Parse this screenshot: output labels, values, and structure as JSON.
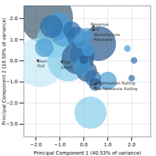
{
  "chart_data": {
    "type": "bubble",
    "xlabel": "Principal Component 1 (40.53% of variance)",
    "ylabel": "Principal Component 2 (10.50% of variance)",
    "xlim": [
      -2.5,
      2.8
    ],
    "ylim": [
      -3.6,
      2.6
    ],
    "xticks": [
      -2,
      -1,
      0,
      1,
      2
    ],
    "yticks": [
      -3,
      -2,
      -1,
      0,
      1,
      2
    ],
    "grid": true,
    "points": [
      {
        "x": -1.55,
        "y": 2.05,
        "size": 3200,
        "color": "#3d5a6e"
      },
      {
        "x": -1.05,
        "y": 1.65,
        "size": 900,
        "color": "#4a9dd4"
      },
      {
        "x": -0.85,
        "y": 1.25,
        "size": 700,
        "color": "#4a9dd4"
      },
      {
        "x": -1.25,
        "y": 0.95,
        "size": 1400,
        "color": "#87ceeb"
      },
      {
        "x": -0.5,
        "y": 1.45,
        "size": 350,
        "color": "#2d6fa8"
      },
      {
        "x": -0.3,
        "y": 1.15,
        "size": 450,
        "color": "#2d6fa8"
      },
      {
        "x": -0.1,
        "y": 0.95,
        "size": 300,
        "color": "#4a9dd4"
      },
      {
        "x": 0.1,
        "y": 1.25,
        "size": 200,
        "color": "#4a9dd4"
      },
      {
        "x": -0.65,
        "y": 0.02,
        "size": 2000,
        "color": "#87ceeb"
      },
      {
        "x": -0.25,
        "y": 0.12,
        "size": 1200,
        "color": "#2a5a8c"
      },
      {
        "x": -0.05,
        "y": 0.32,
        "size": 700,
        "color": "#2d6fa8"
      },
      {
        "x": 0.18,
        "y": 0.52,
        "size": 200,
        "color": "#4a9dd4"
      },
      {
        "x": 0.62,
        "y": 0.82,
        "size": 1400,
        "color": "#2a5a8c"
      },
      {
        "x": -0.05,
        "y": -0.28,
        "size": 350,
        "color": "#4a9dd4"
      },
      {
        "x": 0.12,
        "y": -0.5,
        "size": 500,
        "color": "#2a5a8c"
      },
      {
        "x": 0.38,
        "y": -0.82,
        "size": 300,
        "color": "#2d6fa8"
      },
      {
        "x": 0.48,
        "y": -1.12,
        "size": 180,
        "color": "#2a5a8c"
      },
      {
        "x": 1.0,
        "y": -0.95,
        "size": 380,
        "color": "#4a9dd4"
      },
      {
        "x": 0.28,
        "y": -2.45,
        "size": 1200,
        "color": "#87ceeb"
      },
      {
        "x": 2.1,
        "y": 0.02,
        "size": 50,
        "color": "#2d6fa8"
      },
      {
        "x": 2.0,
        "y": -0.82,
        "size": 50,
        "color": "#2d6fa8"
      },
      {
        "x": 1.82,
        "y": 0.58,
        "size": 50,
        "color": "#4a9dd4"
      },
      {
        "x": -1.85,
        "y": -0.08,
        "size": 2800,
        "color": "#c5e8f7"
      },
      {
        "x": -1.65,
        "y": 0.62,
        "size": 400,
        "color": "#4a9dd4"
      },
      {
        "x": -1.35,
        "y": 1.62,
        "size": 600,
        "color": "#2d6fa8"
      },
      {
        "x": 0.0,
        "y": 0.05,
        "size": 80,
        "color": "#2a5a8c"
      }
    ],
    "annotations": [
      {
        "x": 0.28,
        "y": 1.82,
        "text": "Revenue\nLoss"
      },
      {
        "x": 0.42,
        "y": 1.6,
        "text": "Manufacture"
      },
      {
        "x": 0.42,
        "y": 1.44,
        "text": "Recovery"
      },
      {
        "x": -1.95,
        "y": 0.1,
        "text": "Days\nOut"
      },
      {
        "x": -0.95,
        "y": 0.02,
        "text": "Chol\nLevel"
      },
      {
        "x": 0.52,
        "y": -0.95,
        "text": "Information Rating"
      },
      {
        "x": 0.52,
        "y": -1.18,
        "text": "Performance Rating"
      }
    ],
    "markers": {
      "marker": "square",
      "color": "#333333",
      "points": [
        {
          "x": 0.4,
          "y": 1.62
        },
        {
          "x": 0.4,
          "y": 1.46
        },
        {
          "x": -1.92,
          "y": 0.02
        },
        {
          "x": -0.92,
          "y": -0.03
        },
        {
          "x": 0.48,
          "y": -1.1
        },
        {
          "x": 0.48,
          "y": -1.28
        }
      ]
    }
  }
}
